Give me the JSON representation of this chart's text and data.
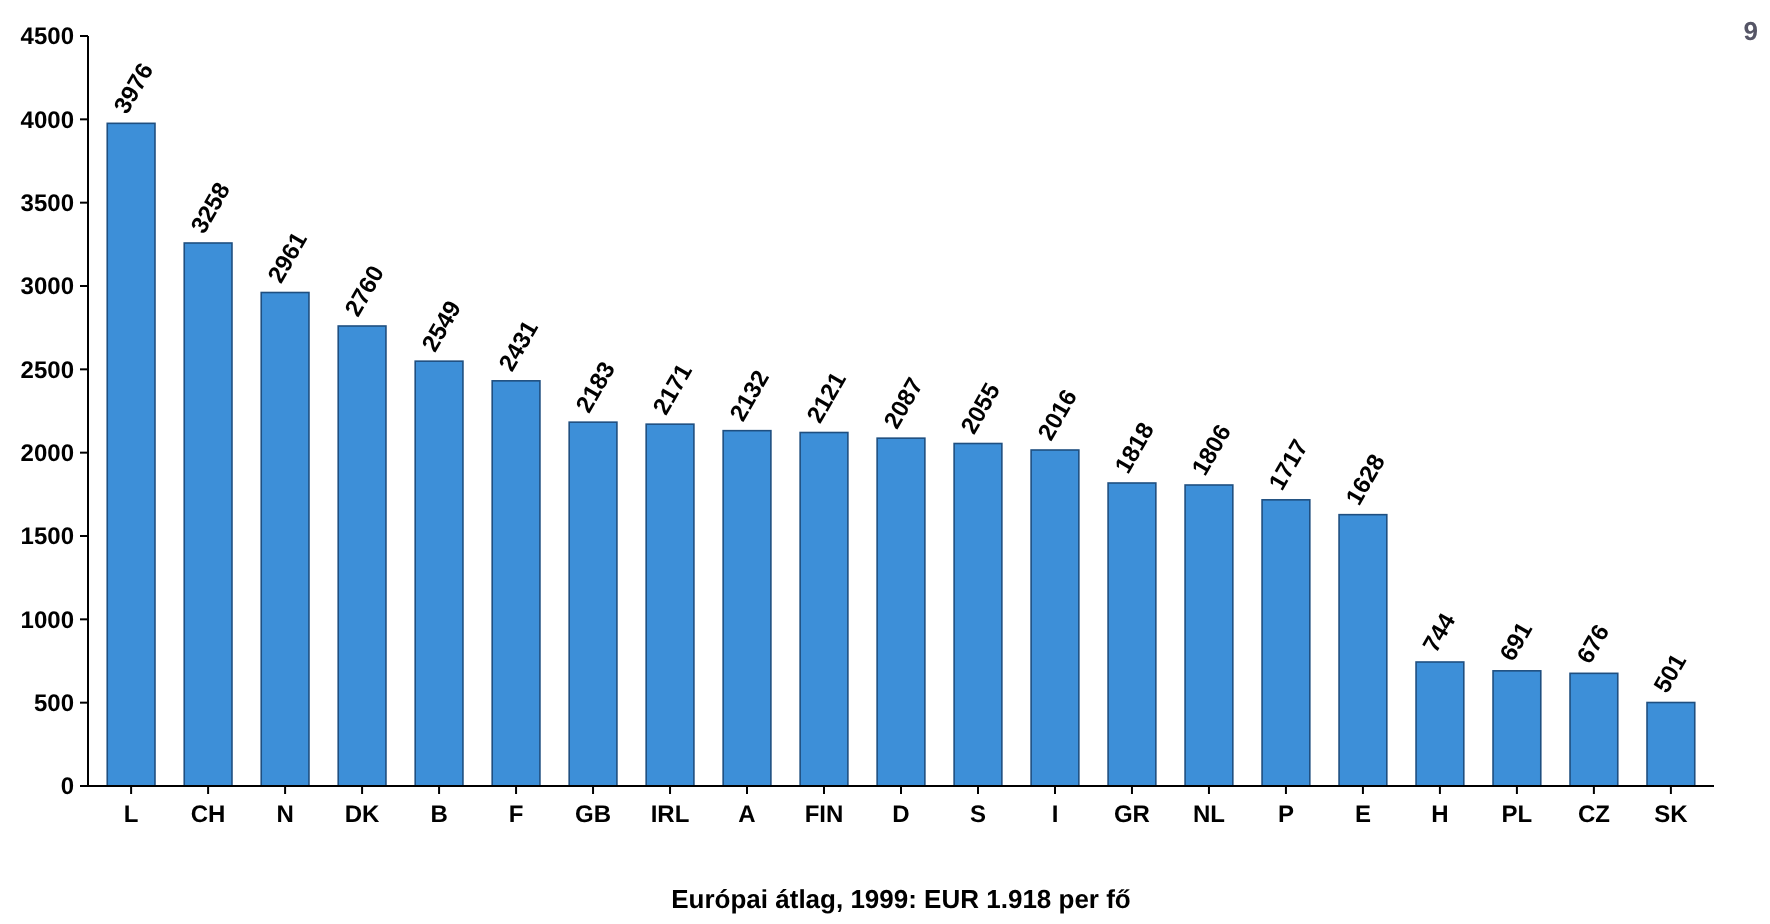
{
  "chart_data": {
    "type": "bar",
    "categories": [
      "L",
      "CH",
      "N",
      "DK",
      "B",
      "F",
      "GB",
      "IRL",
      "A",
      "FIN",
      "D",
      "S",
      "I",
      "GR",
      "NL",
      "P",
      "E",
      "H",
      "PL",
      "CZ",
      "SK"
    ],
    "values": [
      3976,
      3258,
      2961,
      2760,
      2549,
      2431,
      2183,
      2171,
      2132,
      2121,
      2087,
      2055,
      2016,
      1818,
      1806,
      1717,
      1628,
      744,
      691,
      676,
      501
    ],
    "color": "#3d8fd8",
    "data_labels": true,
    "ylim": [
      0,
      4500
    ],
    "yticks": [
      0,
      500,
      1000,
      1500,
      2000,
      2500,
      3000,
      3500,
      4000,
      4500
    ],
    "grid": false,
    "annotations": [
      "Európai átlag, 1999: EUR 1.918 per fő",
      "9"
    ]
  }
}
